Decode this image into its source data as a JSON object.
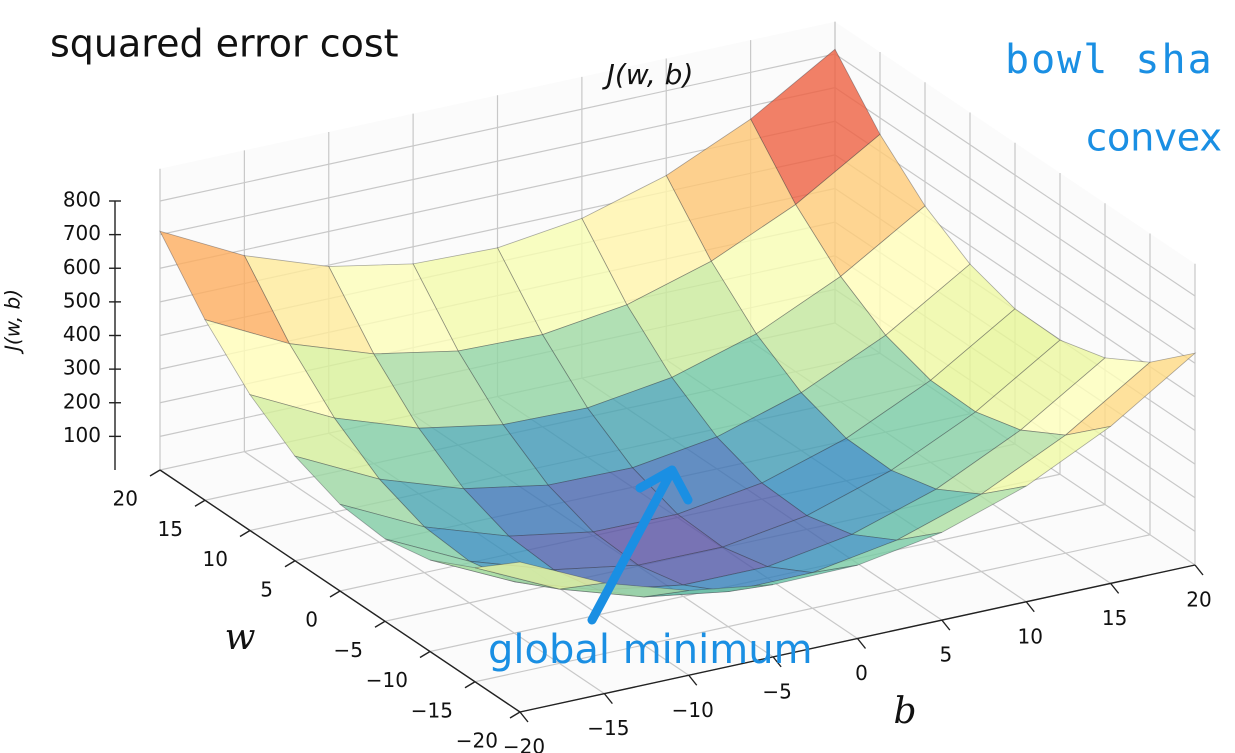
{
  "title": "squared error cost",
  "annotations": [
    "bowl sha",
    "convex",
    "global minimum"
  ],
  "chart_data": {
    "type": "surface3d",
    "title": "J(w, b)",
    "xlabel": "w",
    "ylabel": "b",
    "zlabel": "J(w, b)",
    "colormap": "Spectral_r",
    "grid": true,
    "w": [
      -20,
      -15,
      -10,
      -5,
      0,
      5,
      10,
      15,
      20
    ],
    "b": [
      -20,
      -15,
      -10,
      -5,
      0,
      5,
      10,
      15,
      20
    ],
    "z": [
      [
        446,
        329,
        252,
        215,
        218,
        261,
        344,
        467,
        630
      ],
      [
        339,
        221,
        143,
        104,
        106,
        148,
        230,
        351,
        513
      ],
      [
        272,
        153,
        73,
        34,
        34,
        75,
        155,
        276,
        436
      ],
      [
        245,
        124,
        44,
        3,
        2,
        41,
        121,
        240,
        399
      ],
      [
        258,
        136,
        54,
        12,
        10,
        48,
        126,
        244,
        402
      ],
      [
        311,
        188,
        105,
        61,
        58,
        95,
        172,
        288,
        445
      ],
      [
        404,
        280,
        195,
        151,
        146,
        182,
        257,
        373,
        528
      ],
      [
        537,
        411,
        326,
        280,
        274,
        308,
        383,
        497,
        651
      ],
      [
        710,
        583,
        496,
        449,
        442,
        475,
        548,
        661,
        814
      ]
    ],
    "wlim": [
      -20,
      20
    ],
    "blim": [
      -20,
      20
    ],
    "zlim": [
      0,
      800
    ],
    "wticks": [
      {
        "value": -20,
        "label": "−20"
      },
      {
        "value": -15,
        "label": "−15"
      },
      {
        "value": -10,
        "label": "−10"
      },
      {
        "value": -5,
        "label": "−5"
      },
      0,
      5,
      10,
      15,
      20
    ],
    "bticks": [
      {
        "value": -20,
        "label": "−20"
      },
      {
        "value": -15,
        "label": "−15"
      },
      {
        "value": -10,
        "label": "−10"
      },
      {
        "value": -5,
        "label": "−5"
      },
      0,
      5,
      10,
      15,
      20
    ],
    "zticks": [
      100,
      200,
      300,
      400,
      500,
      600,
      700,
      800
    ]
  }
}
